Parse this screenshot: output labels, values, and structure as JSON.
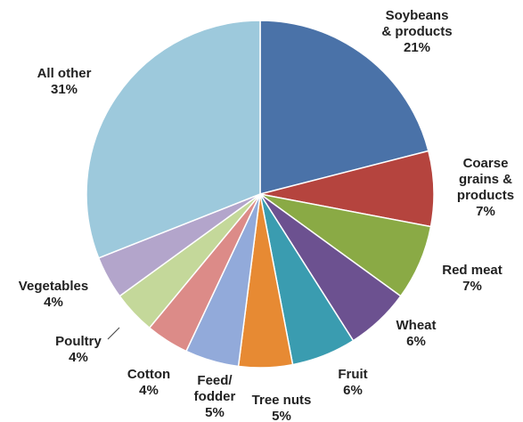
{
  "chart_data": {
    "type": "pie",
    "title": "",
    "start": "12 o'clock",
    "direction": "clockwise",
    "slices": [
      {
        "label": "Soybeans & products",
        "value": 21,
        "value_label": "21%",
        "color": "#4A72A8"
      },
      {
        "label": "Coarse grains & products",
        "value": 7,
        "value_label": "7%",
        "color": "#B5443E"
      },
      {
        "label": "Red meat",
        "value": 7,
        "value_label": "7%",
        "color": "#8AAA45"
      },
      {
        "label": "Wheat",
        "value": 6,
        "value_label": "6%",
        "color": "#6C5190"
      },
      {
        "label": "Fruit",
        "value": 6,
        "value_label": "6%",
        "color": "#3A9CB0"
      },
      {
        "label": "Tree nuts",
        "value": 5,
        "value_label": "5%",
        "color": "#E78A33"
      },
      {
        "label": "Feed/ fodder",
        "value": 5,
        "value_label": "5%",
        "color": "#92AADA"
      },
      {
        "label": "Cotton",
        "value": 4,
        "value_label": "4%",
        "color": "#DC8B88"
      },
      {
        "label": "Poultry",
        "value": 4,
        "value_label": "4%",
        "color": "#C4D89A"
      },
      {
        "label": "Vegetables",
        "value": 4,
        "value_label": "4%",
        "color": "#B3A5CB"
      },
      {
        "label": "All other",
        "value": 31,
        "value_label": "31%",
        "color": "#9DC9DC"
      }
    ]
  }
}
